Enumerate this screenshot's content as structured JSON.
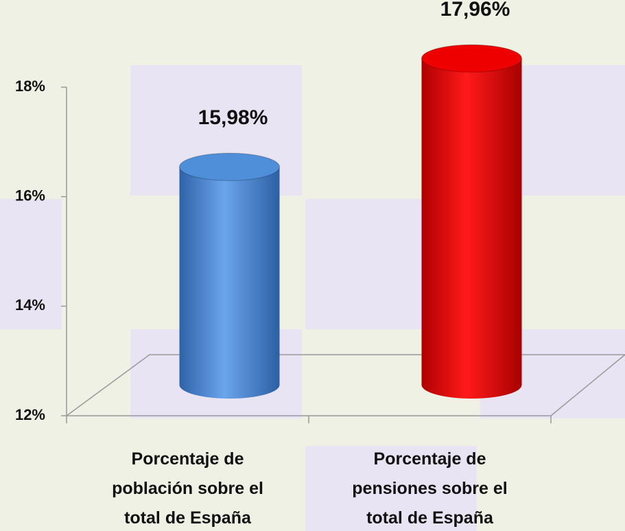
{
  "chart_data": {
    "type": "bar3d",
    "categories": [
      "Porcentaje de población sobre el total de España",
      "Porcentaje de pensiones sobre el total de España"
    ],
    "values": [
      15.98,
      17.96
    ],
    "value_labels": [
      "15,98%",
      "17,96%"
    ],
    "colors": [
      "#4f8fd9",
      "#ee0000"
    ],
    "ylim": [
      12,
      18
    ],
    "yticks": [
      {
        "value": 12,
        "label": "12%"
      },
      {
        "value": 14,
        "label": "14%"
      },
      {
        "value": 16,
        "label": "16%"
      },
      {
        "value": 18,
        "label": "18%"
      }
    ]
  }
}
